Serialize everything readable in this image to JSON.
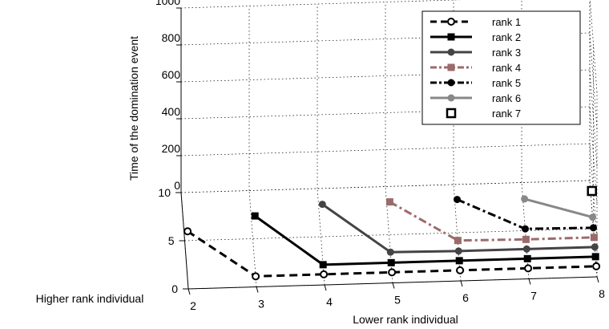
{
  "chart_data": {
    "type": "line",
    "projection": "3d",
    "zlabel": "Time of the domination event",
    "xlabel": "Lower rank individual",
    "ylabel": "Higher rank individual",
    "zlim": [
      0,
      1000
    ],
    "z_ticks": [
      "0",
      "200",
      "400",
      "600",
      "800",
      "1000"
    ],
    "xlim": [
      2,
      8
    ],
    "x_ticks": [
      "2",
      "3",
      "4",
      "5",
      "6",
      "7",
      "8"
    ],
    "ylim": [
      0,
      10
    ],
    "y_ticks": [
      "0",
      "5",
      "10"
    ],
    "grid": true,
    "legend_position": "top-right",
    "series": [
      {
        "name": "rank 1",
        "color": "#000000",
        "line_style": "dashed",
        "marker": "open-circle",
        "points": [
          {
            "x": 2,
            "y": 1,
            "z": 260
          },
          {
            "x": 3,
            "y": 1,
            "z": 5
          },
          {
            "x": 4,
            "y": 1,
            "z": 5
          },
          {
            "x": 5,
            "y": 1,
            "z": 5
          },
          {
            "x": 6,
            "y": 1,
            "z": 5
          },
          {
            "x": 7,
            "y": 1,
            "z": 5
          },
          {
            "x": 8,
            "y": 1,
            "z": 5
          }
        ]
      },
      {
        "name": "rank 2",
        "color": "#000000",
        "line_style": "solid",
        "marker": "filled-square",
        "points": [
          {
            "x": 3,
            "y": 2,
            "z": 280
          },
          {
            "x": 4,
            "y": 2,
            "z": 5
          },
          {
            "x": 5,
            "y": 2,
            "z": 5
          },
          {
            "x": 6,
            "y": 2,
            "z": 5
          },
          {
            "x": 7,
            "y": 2,
            "z": 5
          },
          {
            "x": 8,
            "y": 2,
            "z": 5
          }
        ]
      },
      {
        "name": "rank 3",
        "color": "#444444",
        "line_style": "solid",
        "marker": "filled-circle",
        "points": [
          {
            "x": 4,
            "y": 3,
            "z": 280
          },
          {
            "x": 5,
            "y": 3,
            "z": 10
          },
          {
            "x": 6,
            "y": 3,
            "z": 5
          },
          {
            "x": 7,
            "y": 3,
            "z": 5
          },
          {
            "x": 8,
            "y": 3,
            "z": 5
          }
        ]
      },
      {
        "name": "rank 4",
        "color": "#9b6b6b",
        "line_style": "dash-dot",
        "marker": "filled-square",
        "points": [
          {
            "x": 5,
            "y": 4,
            "z": 230
          },
          {
            "x": 6,
            "y": 4,
            "z": 10
          },
          {
            "x": 7,
            "y": 4,
            "z": 5
          },
          {
            "x": 8,
            "y": 4,
            "z": 5
          }
        ]
      },
      {
        "name": "rank 5",
        "color": "#000000",
        "line_style": "dash-dot",
        "marker": "filled-circle",
        "points": [
          {
            "x": 6,
            "y": 5,
            "z": 180
          },
          {
            "x": 7,
            "y": 5,
            "z": 10
          },
          {
            "x": 8,
            "y": 5,
            "z": 5
          }
        ]
      },
      {
        "name": "rank 6",
        "color": "#888888",
        "line_style": "solid",
        "marker": "filled-circle",
        "points": [
          {
            "x": 7,
            "y": 6,
            "z": 120
          },
          {
            "x": 8,
            "y": 6,
            "z": 10
          }
        ]
      },
      {
        "name": "rank 7",
        "color": "#000000",
        "line_style": "none",
        "marker": "open-square",
        "points": [
          {
            "x": 8,
            "y": 7,
            "z": 100
          }
        ]
      }
    ]
  }
}
